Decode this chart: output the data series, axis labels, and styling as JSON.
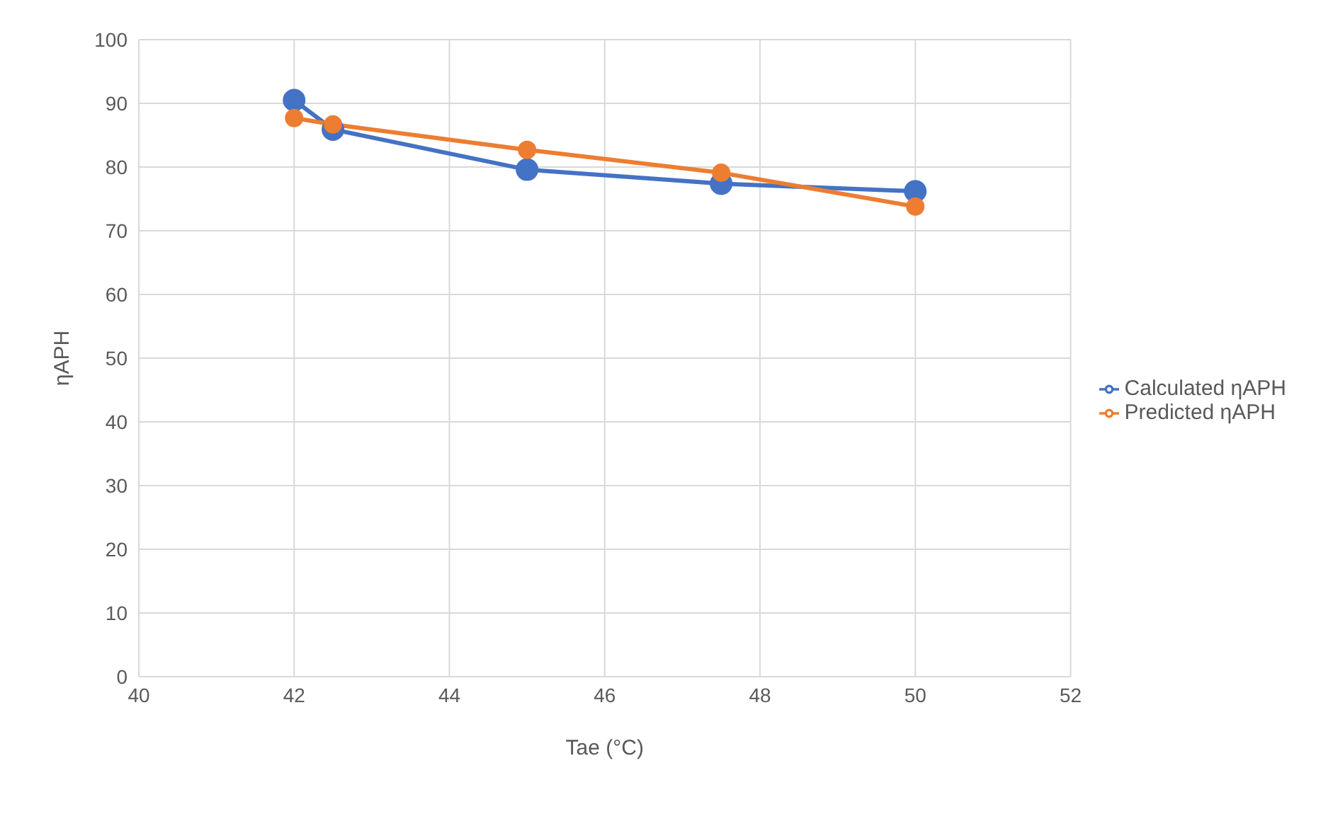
{
  "chart_data": {
    "type": "line",
    "xlabel": "Tae (°C)",
    "ylabel": "ηAPH",
    "x": [
      42,
      42.5,
      45,
      47.5,
      50
    ],
    "series": [
      {
        "name": "Calculated ηAPH",
        "color": "#4472c4",
        "values": [
          90.5,
          85.9,
          79.6,
          77.4,
          76.2
        ]
      },
      {
        "name": "Predicted ηAPH",
        "color": "#ed7d31",
        "values": [
          87.7,
          86.7,
          82.7,
          79.1,
          73.8
        ]
      }
    ],
    "xlim": [
      40,
      52
    ],
    "xticks": [
      40,
      42,
      44,
      46,
      48,
      50,
      52
    ],
    "ylim": [
      0,
      100
    ],
    "yticks": [
      0,
      10,
      20,
      30,
      40,
      50,
      60,
      70,
      80,
      90,
      100
    ],
    "grid": true,
    "legend": "right",
    "marker": "circle",
    "line_style": "solid"
  }
}
